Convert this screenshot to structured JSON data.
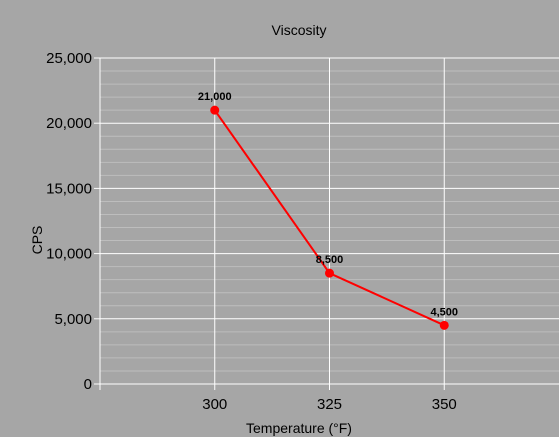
{
  "chart_data": {
    "type": "line",
    "title": "Viscosity",
    "xlabel": "Temperature (°F)",
    "ylabel": "CPS",
    "x": [
      300,
      325,
      350
    ],
    "x_ticks": [
      "300",
      "325",
      "350"
    ],
    "xlim": [
      275,
      375
    ],
    "ylim": [
      0,
      25000
    ],
    "y_ticks": [
      "0",
      "5,000",
      "10,000",
      "15,000",
      "20,000",
      "25,000"
    ],
    "y_tick_values": [
      0,
      5000,
      10000,
      15000,
      20000,
      25000
    ],
    "series": [
      {
        "values": [
          21000,
          8500,
          4500
        ],
        "labels": [
          "21,000",
          "8,500",
          "4,500"
        ]
      }
    ],
    "grid": true,
    "legend": "none"
  },
  "colors": {
    "background": "#a6a6a6",
    "grid_major": "#ffffff",
    "grid_minor": "#bdbdbd",
    "series": "#ff0000"
  }
}
